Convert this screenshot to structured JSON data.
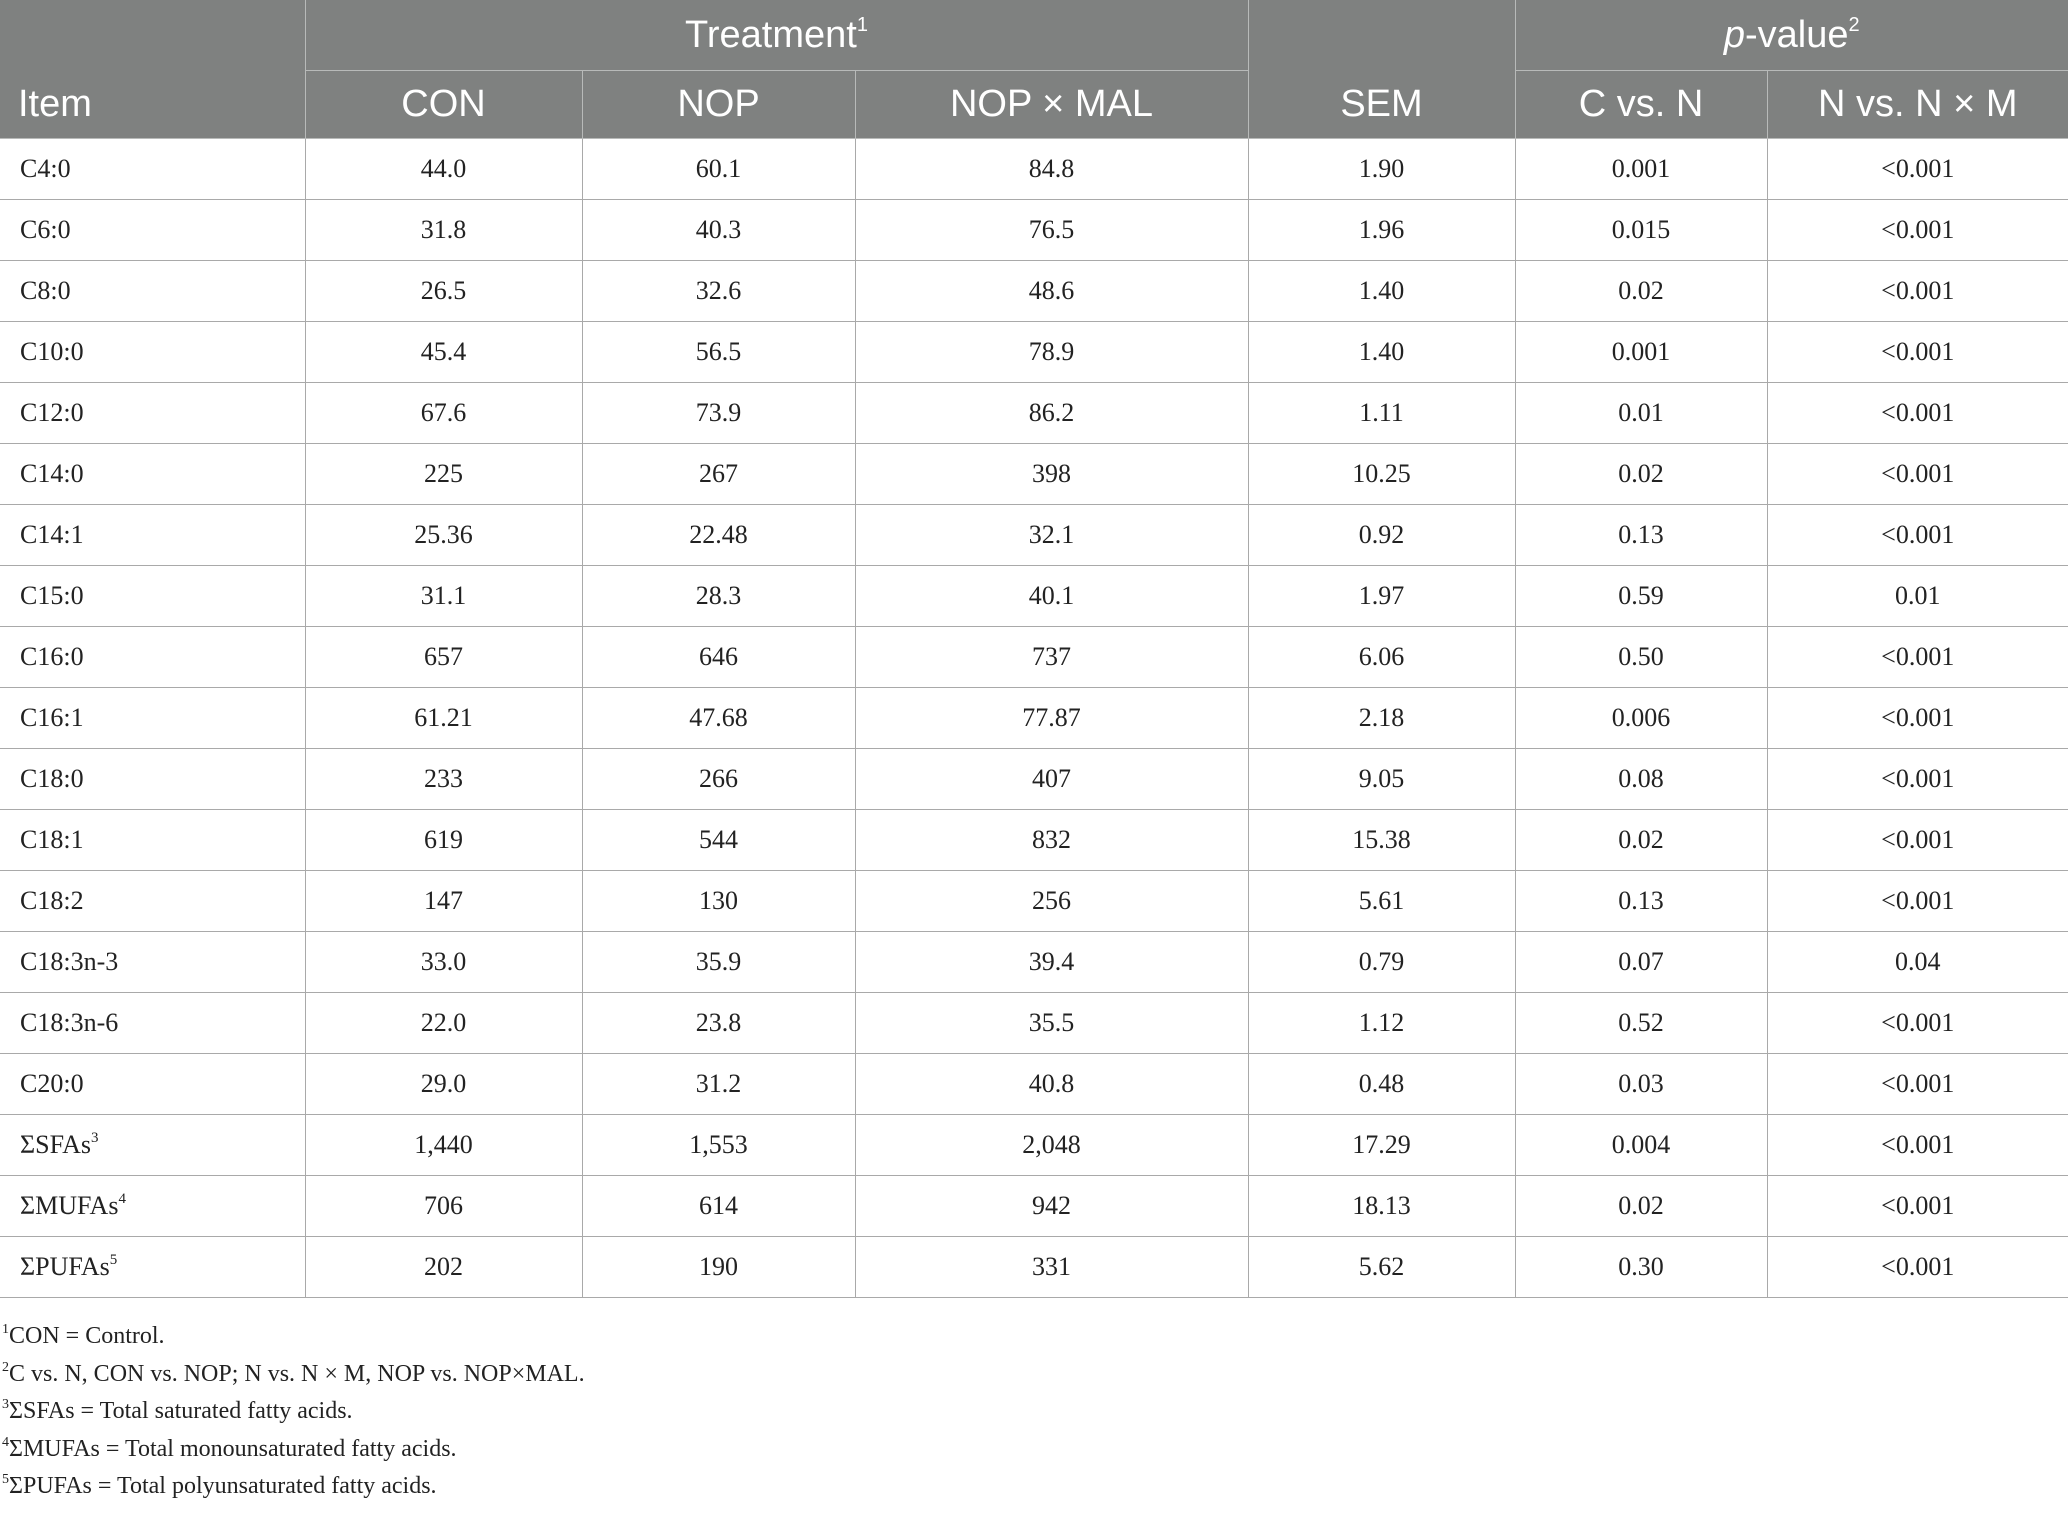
{
  "header": {
    "item_label": "Item",
    "treatment_label": "Treatment",
    "treatment_sup": "1",
    "pvalue_label_italic": "p",
    "pvalue_label_rest": "-value",
    "pvalue_sup": "2",
    "columns": [
      "CON",
      "NOP",
      "NOP × MAL",
      "SEM",
      "C vs. N",
      "N vs. N × M"
    ]
  },
  "rows": [
    {
      "item": "C4:0",
      "sup": "",
      "values": [
        "44.0",
        "60.1",
        "84.8",
        "1.90",
        "0.001",
        "<0.001"
      ]
    },
    {
      "item": "C6:0",
      "sup": "",
      "values": [
        "31.8",
        "40.3",
        "76.5",
        "1.96",
        "0.015",
        "<0.001"
      ]
    },
    {
      "item": "C8:0",
      "sup": "",
      "values": [
        "26.5",
        "32.6",
        "48.6",
        "1.40",
        "0.02",
        "<0.001"
      ]
    },
    {
      "item": "C10:0",
      "sup": "",
      "values": [
        "45.4",
        "56.5",
        "78.9",
        "1.40",
        "0.001",
        "<0.001"
      ]
    },
    {
      "item": "C12:0",
      "sup": "",
      "values": [
        "67.6",
        "73.9",
        "86.2",
        "1.11",
        "0.01",
        "<0.001"
      ]
    },
    {
      "item": "C14:0",
      "sup": "",
      "values": [
        "225",
        "267",
        "398",
        "10.25",
        "0.02",
        "<0.001"
      ]
    },
    {
      "item": "C14:1",
      "sup": "",
      "values": [
        "25.36",
        "22.48",
        "32.1",
        "0.92",
        "0.13",
        "<0.001"
      ]
    },
    {
      "item": "C15:0",
      "sup": "",
      "values": [
        "31.1",
        "28.3",
        "40.1",
        "1.97",
        "0.59",
        "0.01"
      ]
    },
    {
      "item": "C16:0",
      "sup": "",
      "values": [
        "657",
        "646",
        "737",
        "6.06",
        "0.50",
        "<0.001"
      ]
    },
    {
      "item": "C16:1",
      "sup": "",
      "values": [
        "61.21",
        "47.68",
        "77.87",
        "2.18",
        "0.006",
        "<0.001"
      ]
    },
    {
      "item": "C18:0",
      "sup": "",
      "values": [
        "233",
        "266",
        "407",
        "9.05",
        "0.08",
        "<0.001"
      ]
    },
    {
      "item": "C18:1",
      "sup": "",
      "values": [
        "619",
        "544",
        "832",
        "15.38",
        "0.02",
        "<0.001"
      ]
    },
    {
      "item": "C18:2",
      "sup": "",
      "values": [
        "147",
        "130",
        "256",
        "5.61",
        "0.13",
        "<0.001"
      ]
    },
    {
      "item": "C18:3n-3",
      "sup": "",
      "values": [
        "33.0",
        "35.9",
        "39.4",
        "0.79",
        "0.07",
        "0.04"
      ]
    },
    {
      "item": "C18:3n-6",
      "sup": "",
      "values": [
        "22.0",
        "23.8",
        "35.5",
        "1.12",
        "0.52",
        "<0.001"
      ]
    },
    {
      "item": "C20:0",
      "sup": "",
      "values": [
        "29.0",
        "31.2",
        "40.8",
        "0.48",
        "0.03",
        "<0.001"
      ]
    },
    {
      "item": "ΣSFAs",
      "sup": "3",
      "values": [
        "1,440",
        "1,553",
        "2,048",
        "17.29",
        "0.004",
        "<0.001"
      ]
    },
    {
      "item": "ΣMUFAs",
      "sup": "4",
      "values": [
        "706",
        "614",
        "942",
        "18.13",
        "0.02",
        "<0.001"
      ]
    },
    {
      "item": "ΣPUFAs",
      "sup": "5",
      "values": [
        "202",
        "190",
        "331",
        "5.62",
        "0.30",
        "<0.001"
      ]
    }
  ],
  "footnotes": [
    {
      "sup": "1",
      "text": "CON = Control."
    },
    {
      "sup": "2",
      "text": "C vs. N, CON vs. NOP; N vs. N × M, NOP vs. NOP×MAL."
    },
    {
      "sup": "3",
      "text": "ΣSFAs = Total saturated fatty acids."
    },
    {
      "sup": "4",
      "text": "ΣMUFAs = Total monounsaturated fatty acids."
    },
    {
      "sup": "5",
      "text": "ΣPUFAs = Total polyunsaturated fatty acids."
    }
  ]
}
